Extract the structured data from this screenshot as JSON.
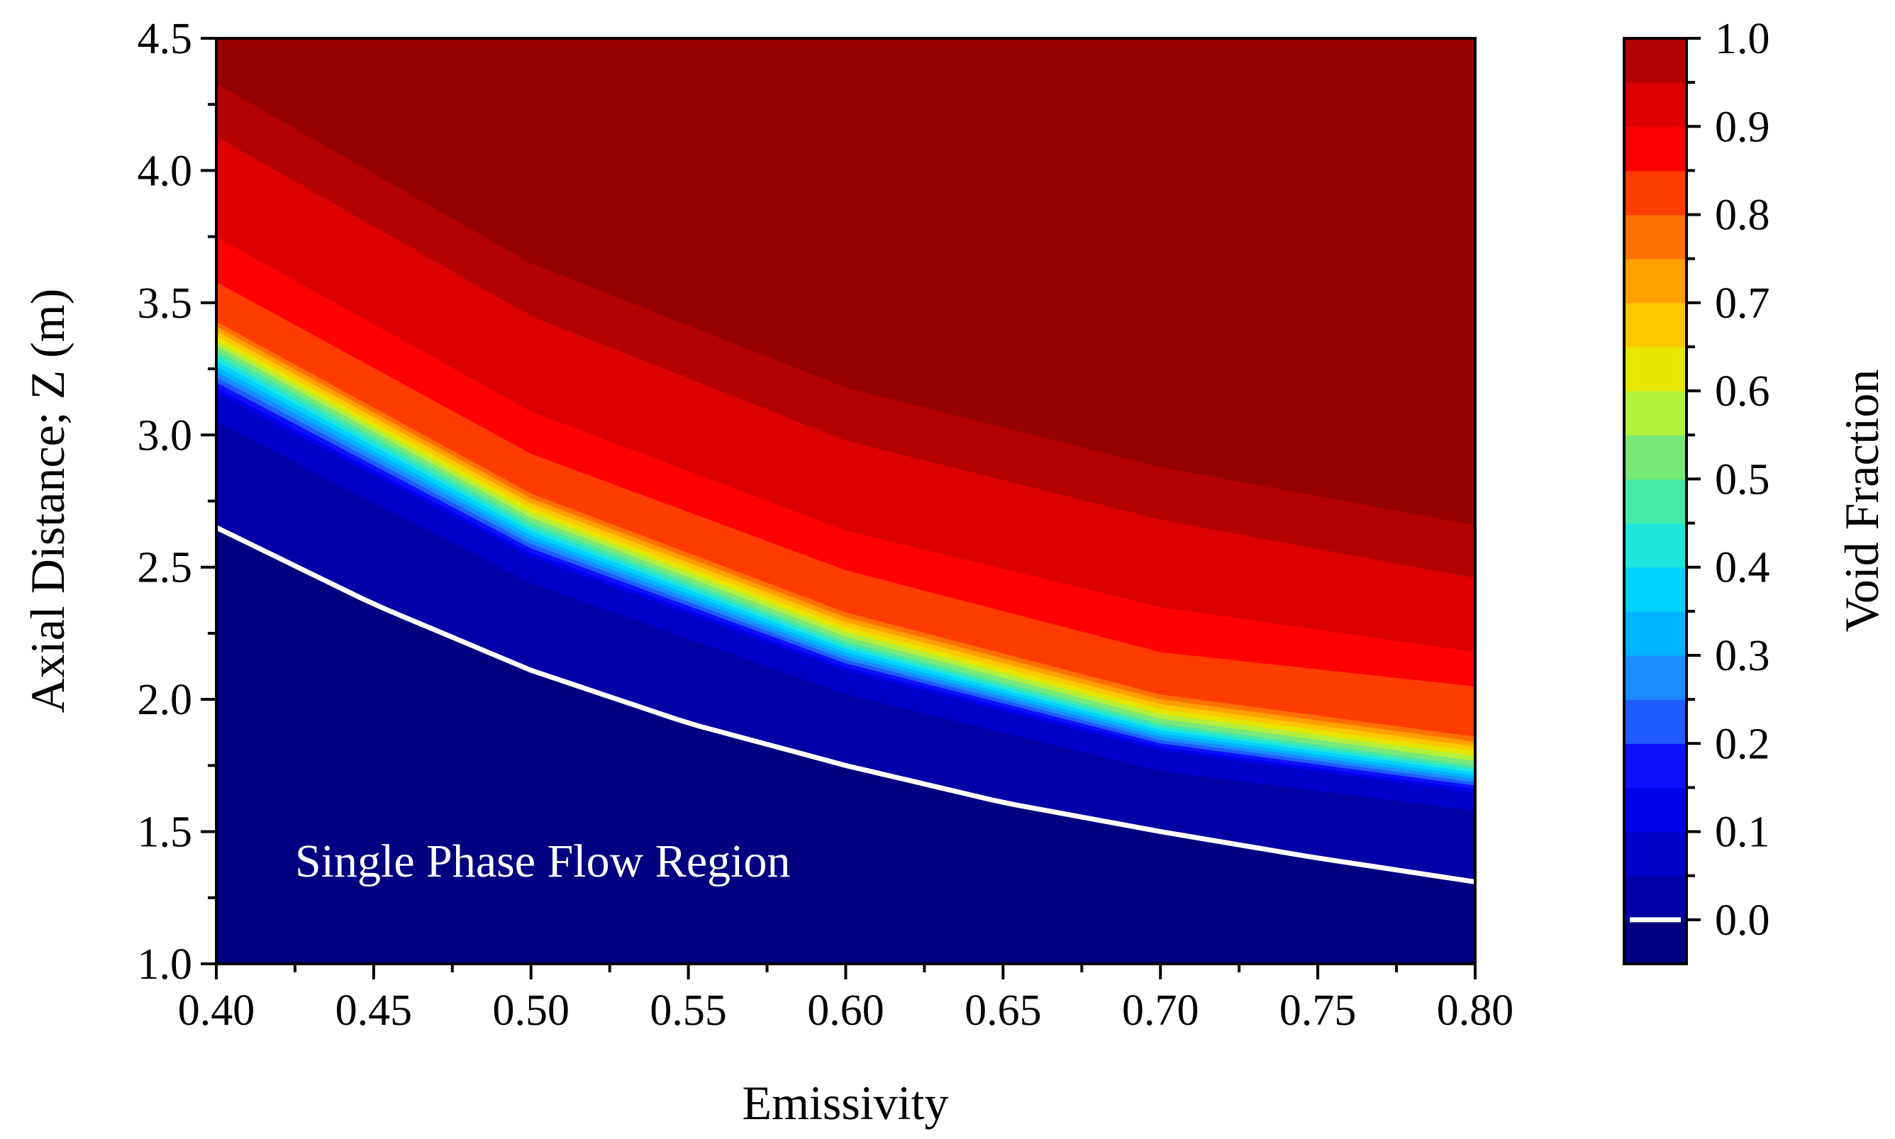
{
  "chart_data": {
    "type": "heatmap",
    "subtype": "filled-contour",
    "title": "",
    "xlabel": "Emissivity",
    "ylabel": "Axial Distance; Z (m)",
    "xlim": [
      0.4,
      0.8
    ],
    "ylim": [
      1.0,
      4.5
    ],
    "x_ticks": [
      "0.40",
      "0.45",
      "0.50",
      "0.55",
      "0.60",
      "0.65",
      "0.70",
      "0.75",
      "0.80"
    ],
    "y_ticks": [
      "1.0",
      "1.5",
      "2.0",
      "2.5",
      "3.0",
      "3.5",
      "4.0",
      "4.5"
    ],
    "colorbar": {
      "label": "Void Fraction",
      "range": [
        -0.05,
        1.0
      ],
      "ticks": [
        "0.0",
        "0.1",
        "0.2",
        "0.3",
        "0.4",
        "0.5",
        "0.6",
        "0.7",
        "0.8",
        "0.9",
        "1.0"
      ],
      "levels": [
        -0.05,
        0.0,
        0.05,
        0.1,
        0.15,
        0.2,
        0.25,
        0.3,
        0.35,
        0.4,
        0.45,
        0.5,
        0.55,
        0.6,
        0.65,
        0.7,
        0.75,
        0.8,
        0.85,
        0.9,
        0.95,
        1.0
      ],
      "colors": [
        "#000080",
        "#0000a6",
        "#0000c8",
        "#0000ea",
        "#0f10ff",
        "#1e5cff",
        "#1a8cff",
        "#00b4ff",
        "#00d2ff",
        "#1ee6dc",
        "#46e8a8",
        "#78e878",
        "#b4f03c",
        "#e6e600",
        "#ffc800",
        "#ffa000",
        "#ff7000",
        "#ff3c00",
        "#ff0000",
        "#dc0000",
        "#b40000",
        "#960000",
        "#800000"
      ],
      "marker_line": {
        "value": 0.0,
        "color": "#ffffff"
      }
    },
    "contour_surface": {
      "description": "Void fraction as function of emissivity (x) and axial distance Z (y)",
      "boiling_onset_Z_at_x": {
        "x": [
          0.4,
          0.45,
          0.5,
          0.55,
          0.6,
          0.65,
          0.7,
          0.75,
          0.8
        ],
        "z": [
          2.65,
          2.36,
          2.11,
          1.91,
          1.75,
          1.61,
          1.5,
          1.4,
          1.31
        ]
      },
      "steep_transition_center_Z_at_x": {
        "x": [
          0.4,
          0.45,
          0.5,
          0.55,
          0.6,
          0.65,
          0.7,
          0.75,
          0.8
        ],
        "z": [
          3.32,
          2.96,
          2.66,
          2.41,
          2.21,
          2.04,
          1.9,
          1.79,
          1.72
        ]
      },
      "contour_lines": [
        {
          "value": 0.05,
          "x": [
            0.4,
            0.5,
            0.6,
            0.7,
            0.8
          ],
          "z": [
            3.05,
            2.44,
            2.02,
            1.73,
            1.58
          ]
        },
        {
          "value": 0.1,
          "x": [
            0.4,
            0.5,
            0.6,
            0.7,
            0.8
          ],
          "z": [
            3.16,
            2.54,
            2.11,
            1.81,
            1.65
          ]
        },
        {
          "value": 0.5,
          "x": [
            0.4,
            0.5,
            0.6,
            0.7,
            0.8
          ],
          "z": [
            3.32,
            2.67,
            2.22,
            1.91,
            1.75
          ]
        },
        {
          "value": 0.8,
          "x": [
            0.4,
            0.5,
            0.6,
            0.7,
            0.8
          ],
          "z": [
            3.43,
            2.78,
            2.33,
            2.02,
            1.86
          ]
        },
        {
          "value": 0.85,
          "x": [
            0.4,
            0.5,
            0.6,
            0.7,
            0.8
          ],
          "z": [
            3.58,
            2.93,
            2.49,
            2.18,
            2.05
          ]
        },
        {
          "value": 0.9,
          "x": [
            0.4,
            0.5,
            0.6,
            0.7,
            0.8
          ],
          "z": [
            3.75,
            3.09,
            2.64,
            2.35,
            2.18
          ]
        },
        {
          "value": 0.95,
          "x": [
            0.4,
            0.5,
            0.6,
            0.7,
            0.8
          ],
          "z": [
            4.13,
            3.45,
            2.98,
            2.68,
            2.46
          ]
        }
      ]
    },
    "annotations": [
      {
        "text": "Single Phase Flow Region",
        "x": 0.425,
        "y": 1.33
      }
    ]
  }
}
